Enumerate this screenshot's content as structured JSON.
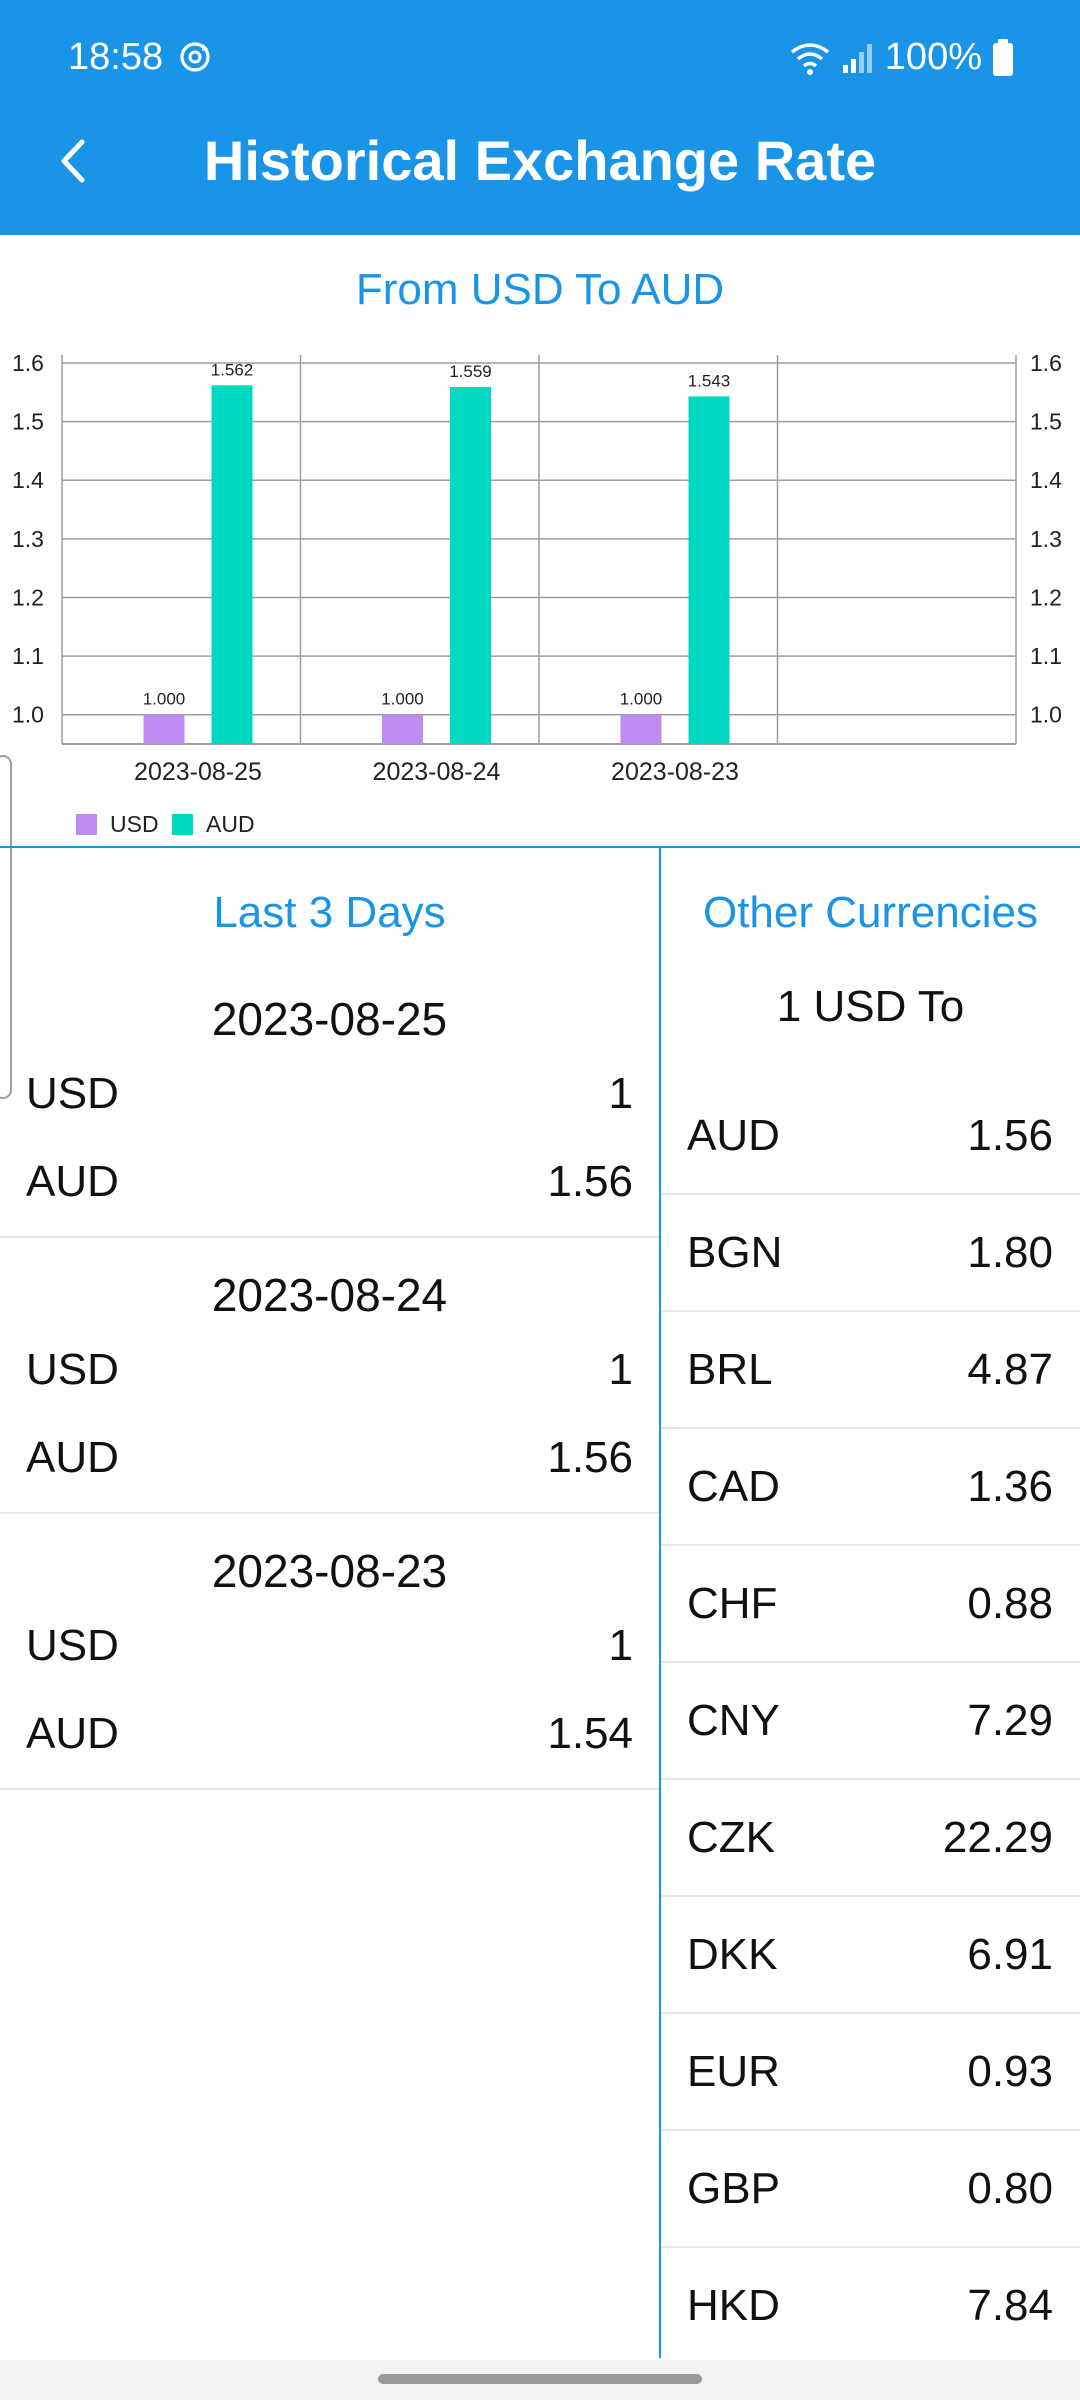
{
  "status": {
    "time": "18:58",
    "battery": "100%"
  },
  "header": {
    "title": "Historical Exchange Rate"
  },
  "chart_title": "From USD To AUD",
  "chart_data": {
    "type": "bar",
    "categories": [
      "2023-08-25",
      "2023-08-24",
      "2023-08-23"
    ],
    "series": [
      {
        "name": "USD",
        "values": [
          1.0,
          1.0,
          1.0
        ],
        "labels": [
          "1.000",
          "1.000",
          "1.000"
        ],
        "color": "#bf8cf2"
      },
      {
        "name": "AUD",
        "values": [
          1.562,
          1.559,
          1.543
        ],
        "labels": [
          "1.562",
          "1.559",
          "1.543"
        ],
        "color": "#00d9c2"
      }
    ],
    "ylim": [
      0.95,
      1.6
    ],
    "yticks": [
      1.0,
      1.1,
      1.2,
      1.3,
      1.4,
      1.5,
      1.6
    ],
    "ytick_labels": [
      "1.0",
      "1.1",
      "1.2",
      "1.3",
      "1.4",
      "1.5",
      "1.6"
    ],
    "grid": true,
    "legend": "bottom-left"
  },
  "last_days": {
    "title": "Last 3 Days",
    "days": [
      {
        "date": "2023-08-25",
        "rows": [
          {
            "code": "USD",
            "value": "1"
          },
          {
            "code": "AUD",
            "value": "1.56"
          }
        ]
      },
      {
        "date": "2023-08-24",
        "rows": [
          {
            "code": "USD",
            "value": "1"
          },
          {
            "code": "AUD",
            "value": "1.56"
          }
        ]
      },
      {
        "date": "2023-08-23",
        "rows": [
          {
            "code": "USD",
            "value": "1"
          },
          {
            "code": "AUD",
            "value": "1.54"
          }
        ]
      }
    ]
  },
  "other": {
    "title": "Other Currencies",
    "subtitle": "1 USD To",
    "rows": [
      {
        "code": "AUD",
        "value": "1.56"
      },
      {
        "code": "BGN",
        "value": "1.80"
      },
      {
        "code": "BRL",
        "value": "4.87"
      },
      {
        "code": "CAD",
        "value": "1.36"
      },
      {
        "code": "CHF",
        "value": "0.88"
      },
      {
        "code": "CNY",
        "value": "7.29"
      },
      {
        "code": "CZK",
        "value": "22.29"
      },
      {
        "code": "DKK",
        "value": "6.91"
      },
      {
        "code": "EUR",
        "value": "0.93"
      },
      {
        "code": "GBP",
        "value": "0.80"
      },
      {
        "code": "HKD",
        "value": "7.84"
      }
    ]
  }
}
